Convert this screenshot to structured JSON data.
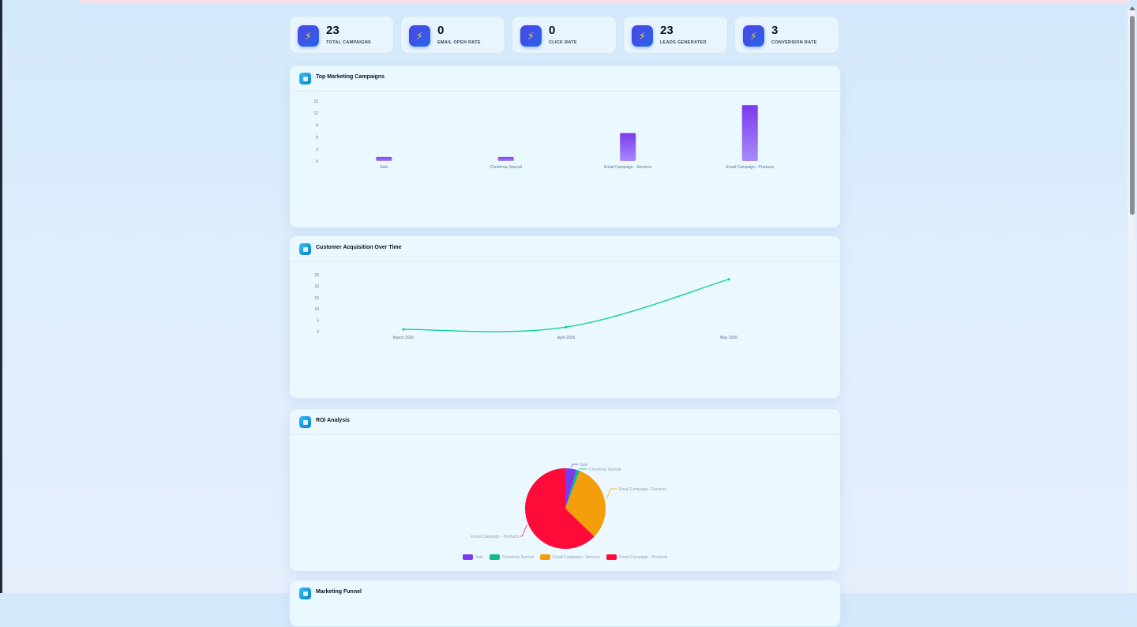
{
  "stats": [
    {
      "value": "23",
      "label": "TOTAL CAMPAIGNS",
      "icon": "lightning-icon"
    },
    {
      "value": "0",
      "label": "EMAIL OPEN RATE",
      "icon": "lightning-icon"
    },
    {
      "value": "0",
      "label": "CLICK RATE",
      "icon": "lightning-icon"
    },
    {
      "value": "23",
      "label": "LEADS GENERATED",
      "icon": "lightning-icon"
    },
    {
      "value": "3",
      "label": "CONVERSION RATE",
      "icon": "lightning-icon"
    }
  ],
  "icon_glyph": "⚡",
  "cards": {
    "campaigns": {
      "title": "Top Marketing Campaigns"
    },
    "acquisition": {
      "title": "Customer Acquisition Over Time"
    },
    "roi": {
      "title": "ROI Analysis"
    },
    "funnel": {
      "title": "Marketing Funnel"
    }
  },
  "colors": {
    "bar_top": "#7c3aed",
    "bar_bottom": "#a78bfa",
    "line": "#10d394",
    "pie": [
      "#7c3aed",
      "#10b981",
      "#f59e0b",
      "#ff0b3a"
    ]
  },
  "chart_data": [
    {
      "type": "bar",
      "title": "Top Marketing Campaigns",
      "categories": [
        "Sale",
        "Christmas Special",
        "Email Campaign - Services",
        "Email Campaign - Products"
      ],
      "values": [
        1,
        1,
        7,
        14
      ],
      "ylim": [
        0,
        15
      ],
      "yticks": [
        0,
        3,
        6,
        9,
        12,
        15
      ],
      "grid": false
    },
    {
      "type": "line",
      "title": "Customer Acquisition Over Time",
      "categories": [
        "March 2026",
        "April 2026",
        "May 2026"
      ],
      "values": [
        1,
        2,
        23
      ],
      "ylim": [
        0,
        25
      ],
      "yticks": [
        0,
        5,
        10,
        15,
        20,
        25
      ],
      "grid": false
    },
    {
      "type": "pie",
      "title": "ROI Analysis",
      "labels": [
        "Sale",
        "Christmas Special",
        "Email Campaign - Services",
        "Email Campaign - Products"
      ],
      "values": [
        1,
        0.3,
        7,
        14
      ],
      "legend": "bottom"
    }
  ]
}
